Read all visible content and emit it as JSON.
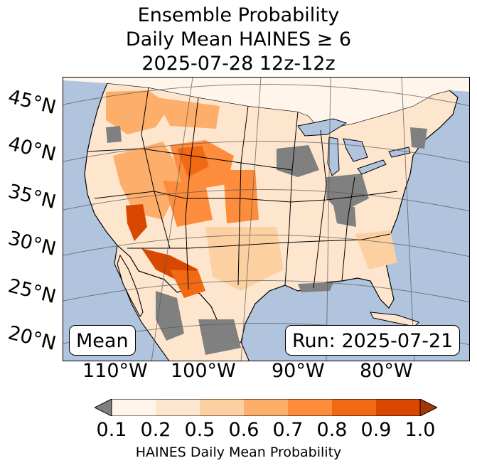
{
  "title": {
    "line1": "Ensemble Probability",
    "line2": "Daily Mean HAINES ≥ 6",
    "line3": "2025-07-28 12z-12z"
  },
  "map": {
    "lat_labels": [
      "45°N",
      "40°N",
      "35°N",
      "30°N",
      "25°N",
      "20°N"
    ],
    "lon_labels": [
      "110°W",
      "100°W",
      "90°W",
      "80°W"
    ],
    "mean_label": "Mean",
    "run_label": "Run: 2025-07-21",
    "colors": {
      "ocean": "#b0c4de",
      "lakes": "#b0c4de",
      "land_missing": "#808080",
      "grid": "#555555"
    }
  },
  "colorbar": {
    "ticks": [
      "0.1",
      "0.2",
      "0.5",
      "0.6",
      "0.7",
      "0.8",
      "0.9",
      "1.0"
    ],
    "colors": [
      "#fff5eb",
      "#fee6ce",
      "#fdd0a2",
      "#fdae6b",
      "#fd8d3c",
      "#f16913",
      "#d94801",
      "#a63603"
    ],
    "under_color": "#808080",
    "label": "HAINES Daily Mean Probability"
  }
}
